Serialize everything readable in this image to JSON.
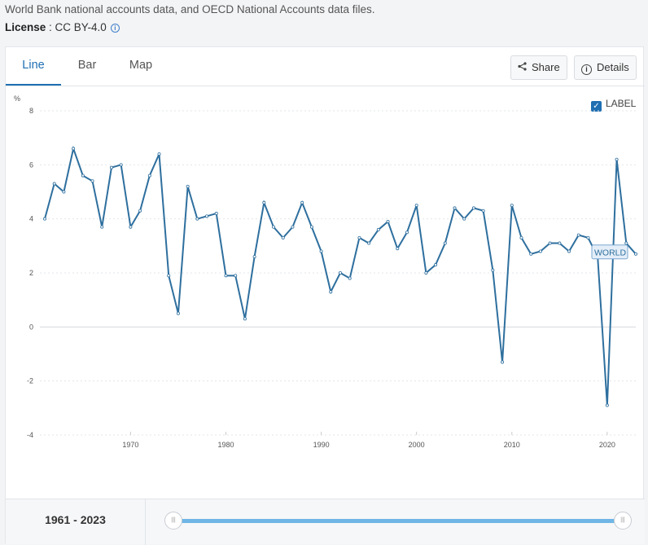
{
  "header": {
    "source_text": "World Bank national accounts data, and OECD National Accounts data files.",
    "license_label": "License",
    "license_value": " : CC BY-4.0"
  },
  "tabs": [
    {
      "label": "Line",
      "active": true
    },
    {
      "label": "Bar",
      "active": false
    },
    {
      "label": "Map",
      "active": false
    }
  ],
  "toolbar": {
    "share_label": "Share",
    "details_label": "Details",
    "label_toggle": "LABEL"
  },
  "footer": {
    "range_start": "1961",
    "range_sep": " - ",
    "range_end": "2023"
  },
  "colors": {
    "line": "#2e6f9e",
    "accent": "#1f6fb2"
  },
  "chart_data": {
    "type": "line",
    "ylabel": "%",
    "ylim": [
      -4,
      8
    ],
    "yticks": [
      -4,
      -2,
      0,
      2,
      4,
      6,
      8
    ],
    "xlim": [
      1961,
      2023
    ],
    "xticks": [
      1970,
      1980,
      1990,
      2000,
      2010,
      2020
    ],
    "series": [
      {
        "name": "WORLD",
        "x": [
          1961,
          1962,
          1963,
          1964,
          1965,
          1966,
          1967,
          1968,
          1969,
          1970,
          1971,
          1972,
          1973,
          1974,
          1975,
          1976,
          1977,
          1978,
          1979,
          1980,
          1981,
          1982,
          1983,
          1984,
          1985,
          1986,
          1987,
          1988,
          1989,
          1990,
          1991,
          1992,
          1993,
          1994,
          1995,
          1996,
          1997,
          1998,
          1999,
          2000,
          2001,
          2002,
          2003,
          2004,
          2005,
          2006,
          2007,
          2008,
          2009,
          2010,
          2011,
          2012,
          2013,
          2014,
          2015,
          2016,
          2017,
          2018,
          2019,
          2020,
          2021,
          2022,
          2023
        ],
        "values": [
          4.0,
          5.3,
          5.0,
          6.6,
          5.6,
          5.4,
          3.7,
          5.9,
          6.0,
          3.7,
          4.3,
          5.6,
          6.4,
          1.9,
          0.5,
          5.2,
          4.0,
          4.1,
          4.2,
          1.9,
          1.9,
          0.3,
          2.6,
          4.6,
          3.7,
          3.3,
          3.7,
          4.6,
          3.7,
          2.8,
          1.3,
          2.0,
          1.8,
          3.3,
          3.1,
          3.6,
          3.9,
          2.9,
          3.5,
          4.5,
          2.0,
          2.3,
          3.1,
          4.4,
          4.0,
          4.4,
          4.3,
          2.1,
          -1.3,
          4.5,
          3.3,
          2.7,
          2.8,
          3.1,
          3.1,
          2.8,
          3.4,
          3.3,
          2.6,
          -2.9,
          6.2,
          3.1,
          2.7
        ]
      }
    ]
  }
}
